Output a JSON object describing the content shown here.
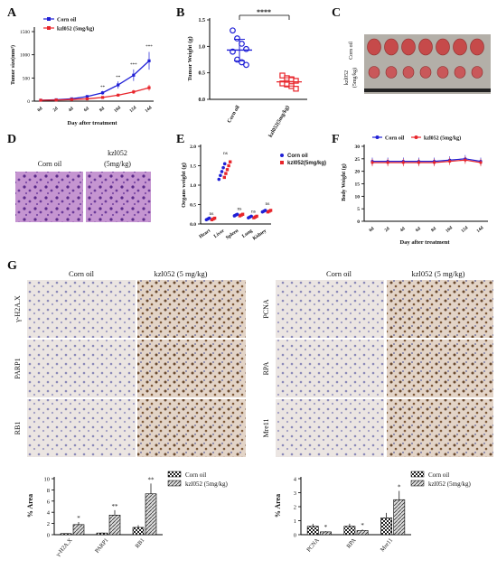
{
  "panels": {
    "A": "A",
    "B": "B",
    "C": "C",
    "D": "D",
    "E": "E",
    "F": "F",
    "G": "G"
  },
  "colors": {
    "corn": "#1f1fd6",
    "kzl": "#e8252b",
    "hne_bg": "#b07fc0",
    "ihc_bg": "#e9e2df"
  },
  "legend": {
    "corn": "Corn oil",
    "kzl_a": "kzl052 (5mg/kg)",
    "kzl_b": "kzl052(5mg/kg)",
    "kzl_g1": "kzl052 (5mg/kg)",
    "kzl_g2": "kzl052 (5mg/kg)"
  },
  "panelB": {
    "sig": "****"
  },
  "panelC": {
    "row1": "Corn oil",
    "row2a": "kzl052",
    "row2b": "(5mg/kg)"
  },
  "panelD": {
    "left": "Corn oil",
    "right_a": "kzl052",
    "right_b": "(5mg/kg)"
  },
  "panelE": {
    "ns": "ns"
  },
  "panelG": {
    "col_corn": "Corn oil",
    "col_kzl": "kzl052 (5 mg/kg)",
    "left_rows": [
      "γ-H2A.X",
      "PARP1",
      "RB1"
    ],
    "right_rows": [
      "PCNA",
      "RPA",
      "Mre11"
    ],
    "sig_star": "*",
    "sig_dstar": "**"
  },
  "chart_data": [
    {
      "panel": "A",
      "type": "line",
      "xlabel": "Day after treatment",
      "ylabel": "Tumor size(mm³)",
      "categories": [
        "0d",
        "2d",
        "4d",
        "6d",
        "8d",
        "10d",
        "12d",
        "14d"
      ],
      "ylim": [
        0,
        1500
      ],
      "yticks": [
        0,
        500,
        1000,
        1500
      ],
      "series": [
        {
          "name": "Corn oil",
          "values": [
            20,
            30,
            50,
            100,
            180,
            350,
            560,
            870
          ]
        },
        {
          "name": "kzl052 (5mg/kg)",
          "values": [
            20,
            25,
            35,
            50,
            80,
            130,
            200,
            290
          ]
        }
      ],
      "significance": [
        "**",
        "**",
        "***",
        "***"
      ]
    },
    {
      "panel": "B",
      "type": "scatter",
      "ylabel": "Tumor Weight (g)",
      "categories": [
        "Corn oil",
        "kzl052(5mg/kg)"
      ],
      "ylim": [
        0,
        1.5
      ],
      "yticks": [
        0.0,
        0.5,
        1.0,
        1.5
      ],
      "series": [
        {
          "name": "Corn oil",
          "values": [
            1.3,
            1.15,
            1.05,
            0.95,
            0.9,
            0.75,
            0.7,
            0.65
          ],
          "mean": 0.93
        },
        {
          "name": "kzl052(5mg/kg)",
          "values": [
            0.45,
            0.4,
            0.38,
            0.35,
            0.3,
            0.28,
            0.25,
            0.2
          ],
          "mean": 0.33
        }
      ]
    },
    {
      "panel": "E",
      "type": "scatter",
      "ylabel": "Organs weight (g)",
      "categories": [
        "Heart",
        "Liver",
        "Spleen",
        "Lung",
        "Kidney"
      ],
      "ylim": [
        0,
        2.0
      ],
      "yticks": [
        0.0,
        0.5,
        1.0,
        1.5,
        2.0
      ],
      "series": [
        {
          "name": "Corn oil",
          "values": [
            0.15,
            1.35,
            0.25,
            0.2,
            0.35
          ]
        },
        {
          "name": "kzl052(5mg/kg)",
          "values": [
            0.15,
            1.4,
            0.25,
            0.2,
            0.35
          ]
        }
      ]
    },
    {
      "panel": "F",
      "type": "line",
      "xlabel": "Day after treatment",
      "ylabel": "Body Weight (g)",
      "categories": [
        "0d",
        "2d",
        "4d",
        "6d",
        "8d",
        "10d",
        "12d",
        "14d"
      ],
      "ylim": [
        0,
        30
      ],
      "yticks": [
        0,
        5,
        10,
        15,
        20,
        25,
        30
      ],
      "series": [
        {
          "name": "Corn oil",
          "values": [
            24,
            24,
            24,
            24,
            24,
            24.5,
            25,
            24
          ]
        },
        {
          "name": "kzl052 (5mg/kg)",
          "values": [
            23.5,
            23.5,
            23.5,
            23.5,
            23.5,
            24,
            24.5,
            23.5
          ]
        }
      ]
    },
    {
      "panel": "G-left",
      "type": "bar",
      "ylabel": "% Area",
      "categories": [
        "γ-H2A.X",
        "PARP1",
        "RB1"
      ],
      "ylim": [
        0,
        10
      ],
      "yticks": [
        0,
        2,
        4,
        6,
        8,
        10
      ],
      "series": [
        {
          "name": "Corn oil",
          "values": [
            0.2,
            0.3,
            1.3
          ]
        },
        {
          "name": "kzl052 (5mg/kg)",
          "values": [
            1.8,
            3.5,
            7.3
          ]
        }
      ],
      "significance": [
        "*",
        "**",
        "**"
      ]
    },
    {
      "panel": "G-right",
      "type": "bar",
      "ylabel": "% Area",
      "categories": [
        "PCNA",
        "RPA",
        "Mre11"
      ],
      "ylim": [
        0,
        4
      ],
      "yticks": [
        0,
        1,
        2,
        3,
        4
      ],
      "series": [
        {
          "name": "Corn oil",
          "values": [
            0.6,
            0.6,
            1.2
          ]
        },
        {
          "name": "kzl052 (5mg/kg)",
          "values": [
            0.2,
            0.3,
            2.5
          ]
        }
      ],
      "significance": [
        "*",
        "*",
        "*"
      ]
    }
  ]
}
